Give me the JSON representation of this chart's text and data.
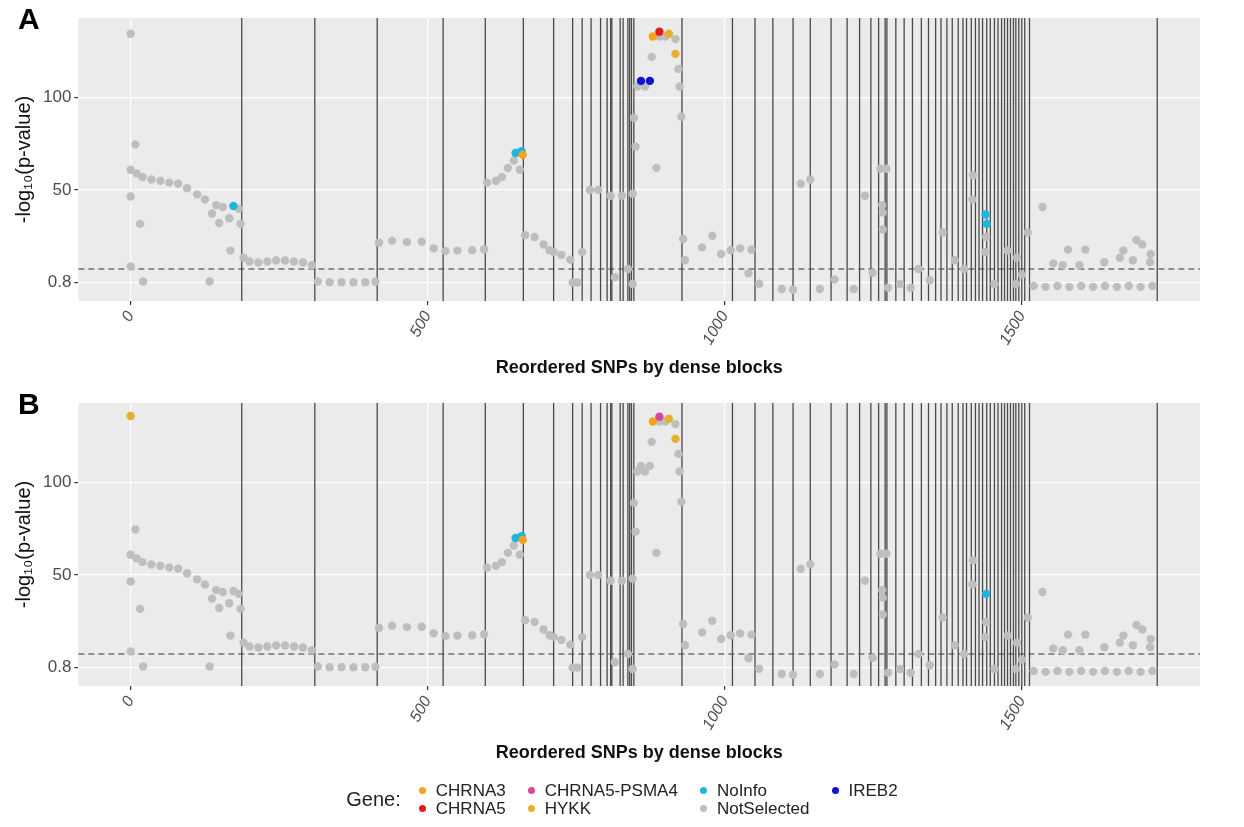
{
  "chart_data": [
    {
      "type": "scatter",
      "title": "A",
      "xlabel": "Reordered SNPs by dense blocks",
      "ylabel": "-log₁₀(p-value)",
      "xlim": [
        -88,
        1800
      ],
      "xticks": [
        0,
        500,
        1000,
        1500
      ],
      "ylim": [
        -9,
        143
      ],
      "yticks": [
        0.8,
        50,
        100
      ],
      "grid": true,
      "legend": false,
      "marker": "circle",
      "series": [
        {
          "color": "#bebebe",
          "x": [
            0,
            8,
            0,
            0,
            16,
            0,
            21,
            10,
            20,
            35,
            50,
            65,
            80,
            95,
            112,
            125,
            144,
            155,
            166,
            182,
            133,
            168,
            149,
            185,
            137,
            190,
            200,
            215,
            230,
            245,
            260,
            275,
            290,
            305,
            315,
            335,
            355,
            375,
            395,
            412,
            418,
            440,
            465,
            490,
            510,
            530,
            550,
            575,
            595,
            600,
            615,
            625,
            635,
            645,
            655,
            664,
            680,
            695,
            705,
            712,
            725,
            740,
            744,
            752,
            760,
            773,
            787,
            808,
            815,
            827,
            837,
            845,
            845,
            847,
            850,
            853,
            866,
            877,
            885,
            890,
            900,
            917,
            922,
            924,
            927,
            930,
            933,
            962,
            979,
            994,
            1010,
            1026,
            1045,
            1040,
            1058,
            1096,
            1115,
            1128,
            1144,
            1160,
            1185,
            1217,
            1236,
            1249,
            1262,
            1272,
            1265,
            1266,
            1266,
            1275,
            1295,
            1313,
            1326,
            1345,
            1367,
            1387,
            1403,
            1418,
            1417,
            1440,
            1438,
            1454,
            1476,
            1490,
            1492,
            1500,
            1510,
            1535,
            1520,
            1540,
            1560,
            1580,
            1600,
            1620,
            1640,
            1660,
            1680,
            1700,
            1720,
            1578,
            1607,
            1671,
            1693,
            1703,
            1717,
            1553,
            1569,
            1597,
            1639,
            1665,
            1687,
            1716
          ],
          "values": [
            134.5,
            74.7,
            61,
            46.6,
            32,
            9.3,
            1.4,
            59,
            57,
            55.7,
            55,
            54,
            53.5,
            51,
            47.7,
            45,
            42,
            41,
            35,
            40,
            1.4,
            17.8,
            32.5,
            32,
            37.5,
            14,
            12,
            11.5,
            12,
            12.5,
            12.5,
            12,
            11.5,
            10,
            1.4,
            1,
            1,
            1,
            1,
            1.2,
            22,
            23,
            22.3,
            22.5,
            19,
            17.5,
            17.8,
            18,
            18.5,
            54,
            55,
            57,
            62,
            66,
            61,
            26,
            25,
            21,
            18,
            17,
            15.5,
            13,
            0.8,
            0.8,
            17,
            50,
            50,
            47,
            3.6,
            47,
            8,
            48,
            0,
            89,
            73.5,
            106,
            106,
            122,
            62,
            133,
            133,
            131.6,
            115.5,
            106,
            89.6,
            24,
            12.7,
            19.5,
            25.7,
            16,
            18,
            19,
            18.3,
            5.7,
            0.2,
            -2.6,
            -3,
            53.4,
            55.7,
            -2.6,
            2.5,
            -2.6,
            47,
            6,
            61.5,
            61.5,
            42,
            29,
            38,
            -2,
            0,
            -2,
            8,
            2,
            27.4,
            12.7,
            8,
            58,
            45,
            25,
            17,
            0,
            17.8,
            0,
            14,
            5,
            27.4,
            41,
            -1,
            -1.5,
            -1,
            -1.5,
            -1,
            -1.5,
            -1,
            -1.5,
            -1,
            -1.5,
            -1,
            18.3,
            18.3,
            17.8,
            23.4,
            21,
            16,
            11,
            10,
            10,
            11.6,
            14,
            12.7,
            11.6
          ]
        },
        {
          "color": "#f5a31a",
          "x": [
            879,
            660
          ],
          "values": [
            133,
            69
          ]
        },
        {
          "color": "#e41a1c",
          "x": [
            890
          ],
          "values": [
            135.6
          ]
        },
        {
          "color": "#e6b02e",
          "x": [
            906,
            917
          ],
          "values": [
            134.5,
            123.6
          ]
        },
        {
          "color": "#1fb5e0",
          "x": [
            173,
            648,
            658,
            1439,
            1441
          ],
          "values": [
            41.5,
            70,
            71,
            37,
            32
          ]
        },
        {
          "color": "#1010d0",
          "x": [
            859,
            874
          ],
          "values": [
            109,
            109
          ]
        }
      ],
      "ref_lines": [
        {
          "axis": "y",
          "value": 8,
          "line_style": "dashed"
        },
        {
          "axis": "x",
          "value": 187
        },
        {
          "axis": "x",
          "value": 310
        },
        {
          "axis": "x",
          "value": 415
        },
        {
          "axis": "x",
          "value": 526
        },
        {
          "axis": "x",
          "value": 597
        },
        {
          "axis": "x",
          "value": 661
        },
        {
          "axis": "x",
          "value": 712
        },
        {
          "axis": "x",
          "value": 744
        },
        {
          "axis": "x",
          "value": 760
        },
        {
          "axis": "x",
          "value": 775
        },
        {
          "axis": "x",
          "value": 791
        },
        {
          "axis": "x",
          "value": 802
        },
        {
          "axis": "x",
          "value": 808
        },
        {
          "axis": "x",
          "value": 810
        },
        {
          "axis": "x",
          "value": 824
        },
        {
          "axis": "x",
          "value": 829
        },
        {
          "axis": "x",
          "value": 837
        },
        {
          "axis": "x",
          "value": 840
        },
        {
          "axis": "x",
          "value": 843
        },
        {
          "axis": "x",
          "value": 847
        },
        {
          "axis": "x",
          "value": 928
        },
        {
          "axis": "x",
          "value": 1013
        },
        {
          "axis": "x",
          "value": 1051
        },
        {
          "axis": "x",
          "value": 1081
        },
        {
          "axis": "x",
          "value": 1115
        },
        {
          "axis": "x",
          "value": 1144
        },
        {
          "axis": "x",
          "value": 1179
        },
        {
          "axis": "x",
          "value": 1206
        },
        {
          "axis": "x",
          "value": 1227
        },
        {
          "axis": "x",
          "value": 1246
        },
        {
          "axis": "x",
          "value": 1259
        },
        {
          "axis": "x",
          "value": 1270
        },
        {
          "axis": "x",
          "value": 1273
        },
        {
          "axis": "x",
          "value": 1288
        },
        {
          "axis": "x",
          "value": 1302
        },
        {
          "axis": "x",
          "value": 1316
        },
        {
          "axis": "x",
          "value": 1331
        },
        {
          "axis": "x",
          "value": 1343
        },
        {
          "axis": "x",
          "value": 1355
        },
        {
          "axis": "x",
          "value": 1364
        },
        {
          "axis": "x",
          "value": 1374
        },
        {
          "axis": "x",
          "value": 1383
        },
        {
          "axis": "x",
          "value": 1393
        },
        {
          "axis": "x",
          "value": 1401
        },
        {
          "axis": "x",
          "value": 1407
        },
        {
          "axis": "x",
          "value": 1415
        },
        {
          "axis": "x",
          "value": 1422
        },
        {
          "axis": "x",
          "value": 1428
        },
        {
          "axis": "x",
          "value": 1434
        },
        {
          "axis": "x",
          "value": 1441
        },
        {
          "axis": "x",
          "value": 1447
        },
        {
          "axis": "x",
          "value": 1454
        },
        {
          "axis": "x",
          "value": 1460
        },
        {
          "axis": "x",
          "value": 1466
        },
        {
          "axis": "x",
          "value": 1471
        },
        {
          "axis": "x",
          "value": 1476
        },
        {
          "axis": "x",
          "value": 1481
        },
        {
          "axis": "x",
          "value": 1486
        },
        {
          "axis": "x",
          "value": 1490
        },
        {
          "axis": "x",
          "value": 1495
        },
        {
          "axis": "x",
          "value": 1500
        },
        {
          "axis": "x",
          "value": 1505
        },
        {
          "axis": "x",
          "value": 1513
        },
        {
          "axis": "x",
          "value": 1728
        }
      ]
    },
    {
      "type": "scatter",
      "title": "B",
      "xlabel": "Reordered SNPs by dense blocks",
      "ylabel": "-log₁₀(p-value)",
      "xlim": [
        -88,
        1800
      ],
      "xticks": [
        0,
        500,
        1000,
        1500
      ],
      "ylim": [
        -9,
        143
      ],
      "yticks": [
        0.8,
        50,
        100
      ],
      "grid": true,
      "legend": "bottom",
      "legend_title": "Gene:",
      "marker": "circle",
      "series": [
        {
          "name": "CHRNA3",
          "color": "#f5a31a",
          "x": [
            879,
            660
          ],
          "values": [
            133,
            69
          ]
        },
        {
          "name": "CHRNA5",
          "color": "#e41a1c"
        },
        {
          "name": "CHRNA5-PSMA4",
          "color": "#d8479a",
          "x": [
            890
          ],
          "values": [
            135.6
          ]
        },
        {
          "name": "HYKK",
          "color": "#e6b02e",
          "x": [
            0,
            906,
            917
          ],
          "values": [
            136,
            134.5,
            123.6
          ]
        },
        {
          "name": "NoInfo",
          "color": "#1fb5e0",
          "x": [
            648,
            658,
            1440
          ],
          "values": [
            70,
            71,
            40
          ]
        },
        {
          "name": "NotSelected",
          "color": "#bebebe",
          "x": [
            8,
            0,
            0,
            16,
            0,
            21,
            10,
            20,
            35,
            50,
            65,
            80,
            95,
            112,
            125,
            144,
            155,
            166,
            173,
            182,
            133,
            168,
            149,
            185,
            137,
            190,
            200,
            215,
            230,
            245,
            260,
            275,
            290,
            305,
            315,
            335,
            355,
            375,
            395,
            412,
            418,
            440,
            465,
            490,
            510,
            530,
            550,
            575,
            595,
            600,
            615,
            625,
            635,
            645,
            655,
            664,
            680,
            695,
            705,
            712,
            725,
            740,
            744,
            752,
            760,
            773,
            787,
            808,
            815,
            827,
            837,
            845,
            845,
            847,
            850,
            853,
            859,
            866,
            874,
            877,
            885,
            890,
            900,
            917,
            922,
            924,
            927,
            930,
            933,
            962,
            979,
            994,
            1010,
            1026,
            1045,
            1040,
            1058,
            1096,
            1115,
            1128,
            1144,
            1160,
            1185,
            1217,
            1236,
            1249,
            1262,
            1272,
            1265,
            1266,
            1266,
            1275,
            1295,
            1313,
            1326,
            1345,
            1367,
            1387,
            1403,
            1418,
            1417,
            1440,
            1438,
            1454,
            1476,
            1490,
            1492,
            1500,
            1510,
            1535,
            1520,
            1540,
            1560,
            1580,
            1600,
            1620,
            1640,
            1660,
            1680,
            1700,
            1720,
            1578,
            1607,
            1671,
            1693,
            1703,
            1717,
            1553,
            1569,
            1597,
            1639,
            1665,
            1687,
            1716
          ],
          "values": [
            74.7,
            61,
            46.6,
            32,
            9.3,
            1.4,
            59,
            57,
            55.7,
            55,
            54,
            53.5,
            51,
            47.7,
            45,
            42,
            41,
            35,
            41.5,
            40,
            1.4,
            17.8,
            32.5,
            32,
            37.5,
            14,
            12,
            11.5,
            12,
            12.5,
            12.5,
            12,
            11.5,
            10,
            1.4,
            1,
            1,
            1,
            1,
            1.2,
            22,
            23,
            22.3,
            22.5,
            19,
            17.5,
            17.8,
            18,
            18.5,
            54,
            55,
            57,
            62,
            66,
            61,
            26,
            25,
            21,
            18,
            17,
            15.5,
            13,
            0.8,
            0.8,
            17,
            50,
            50,
            47,
            3.6,
            47,
            8,
            48,
            0,
            89,
            73.5,
            106,
            109,
            106,
            109,
            122,
            62,
            133,
            133,
            131.6,
            115.5,
            106,
            89.6,
            24,
            12.7,
            19.5,
            25.7,
            16,
            18,
            19,
            18.3,
            5.7,
            0.2,
            -2.6,
            -3,
            53.4,
            55.7,
            -2.6,
            2.5,
            -2.6,
            47,
            6,
            61.5,
            61.5,
            42,
            29,
            38,
            -2,
            0,
            -2,
            8,
            2,
            27.4,
            12.7,
            8,
            58,
            45,
            25,
            17,
            0,
            17.8,
            0,
            14,
            5,
            27.4,
            41,
            -1,
            -1.5,
            -1,
            -1.5,
            -1,
            -1.5,
            -1,
            -1.5,
            -1,
            -1.5,
            -1,
            18.3,
            18.3,
            17.8,
            23.4,
            21,
            16,
            11,
            10,
            10,
            11.6,
            14,
            12.7,
            11.6
          ]
        },
        {
          "name": "IREB2",
          "color": "#1010d0"
        }
      ],
      "ref_lines": [
        {
          "axis": "y",
          "value": 8,
          "line_style": "dashed"
        },
        {
          "axis": "x",
          "value": 187
        },
        {
          "axis": "x",
          "value": 310
        },
        {
          "axis": "x",
          "value": 415
        },
        {
          "axis": "x",
          "value": 526
        },
        {
          "axis": "x",
          "value": 597
        },
        {
          "axis": "x",
          "value": 661
        },
        {
          "axis": "x",
          "value": 712
        },
        {
          "axis": "x",
          "value": 744
        },
        {
          "axis": "x",
          "value": 760
        },
        {
          "axis": "x",
          "value": 775
        },
        {
          "axis": "x",
          "value": 791
        },
        {
          "axis": "x",
          "value": 802
        },
        {
          "axis": "x",
          "value": 808
        },
        {
          "axis": "x",
          "value": 810
        },
        {
          "axis": "x",
          "value": 824
        },
        {
          "axis": "x",
          "value": 829
        },
        {
          "axis": "x",
          "value": 837
        },
        {
          "axis": "x",
          "value": 840
        },
        {
          "axis": "x",
          "value": 843
        },
        {
          "axis": "x",
          "value": 847
        },
        {
          "axis": "x",
          "value": 928
        },
        {
          "axis": "x",
          "value": 1013
        },
        {
          "axis": "x",
          "value": 1051
        },
        {
          "axis": "x",
          "value": 1081
        },
        {
          "axis": "x",
          "value": 1115
        },
        {
          "axis": "x",
          "value": 1144
        },
        {
          "axis": "x",
          "value": 1179
        },
        {
          "axis": "x",
          "value": 1206
        },
        {
          "axis": "x",
          "value": 1227
        },
        {
          "axis": "x",
          "value": 1246
        },
        {
          "axis": "x",
          "value": 1259
        },
        {
          "axis": "x",
          "value": 1270
        },
        {
          "axis": "x",
          "value": 1273
        },
        {
          "axis": "x",
          "value": 1288
        },
        {
          "axis": "x",
          "value": 1302
        },
        {
          "axis": "x",
          "value": 1316
        },
        {
          "axis": "x",
          "value": 1331
        },
        {
          "axis": "x",
          "value": 1343
        },
        {
          "axis": "x",
          "value": 1355
        },
        {
          "axis": "x",
          "value": 1364
        },
        {
          "axis": "x",
          "value": 1374
        },
        {
          "axis": "x",
          "value": 1383
        },
        {
          "axis": "x",
          "value": 1393
        },
        {
          "axis": "x",
          "value": 1401
        },
        {
          "axis": "x",
          "value": 1407
        },
        {
          "axis": "x",
          "value": 1415
        },
        {
          "axis": "x",
          "value": 1422
        },
        {
          "axis": "x",
          "value": 1428
        },
        {
          "axis": "x",
          "value": 1434
        },
        {
          "axis": "x",
          "value": 1441
        },
        {
          "axis": "x",
          "value": 1447
        },
        {
          "axis": "x",
          "value": 1454
        },
        {
          "axis": "x",
          "value": 1460
        },
        {
          "axis": "x",
          "value": 1466
        },
        {
          "axis": "x",
          "value": 1471
        },
        {
          "axis": "x",
          "value": 1476
        },
        {
          "axis": "x",
          "value": 1481
        },
        {
          "axis": "x",
          "value": 1486
        },
        {
          "axis": "x",
          "value": 1490
        },
        {
          "axis": "x",
          "value": 1495
        },
        {
          "axis": "x",
          "value": 1500
        },
        {
          "axis": "x",
          "value": 1505
        },
        {
          "axis": "x",
          "value": 1513
        },
        {
          "axis": "x",
          "value": 1728
        }
      ]
    }
  ]
}
